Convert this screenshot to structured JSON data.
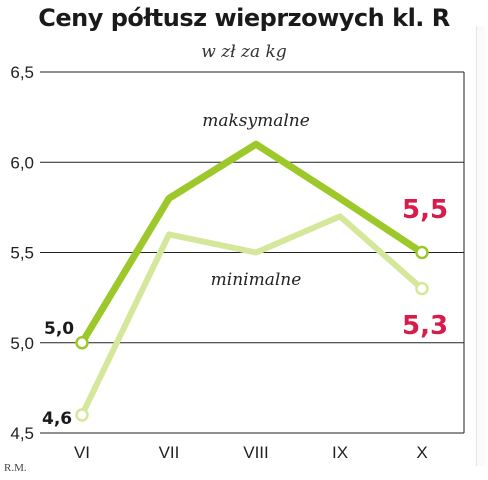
{
  "chart_data": {
    "type": "line",
    "title": "Ceny półtusz wieprzowych kl. R",
    "subtitle": "w zł za kg",
    "categories": [
      "VI",
      "VII",
      "VIII",
      "IX",
      "X"
    ],
    "ylim": [
      4.5,
      6.5
    ],
    "yticks": [
      "4,5",
      "5,0",
      "5,5",
      "6,0",
      "6,5"
    ],
    "grid": true,
    "series": [
      {
        "name": "maksymalne",
        "values": [
          5.0,
          5.8,
          6.1,
          5.8,
          5.5
        ],
        "color": "#9cc82a"
      },
      {
        "name": "minimalne",
        "values": [
          4.6,
          5.6,
          5.5,
          5.7,
          5.3
        ],
        "color": "#d5e79a"
      }
    ],
    "annotations": {
      "max_start": "5,0",
      "min_start": "4,6",
      "max_end": "5,5",
      "min_end": "5,3"
    },
    "colors": {
      "highlight": "#d81b4a"
    }
  },
  "credit": "R.M."
}
